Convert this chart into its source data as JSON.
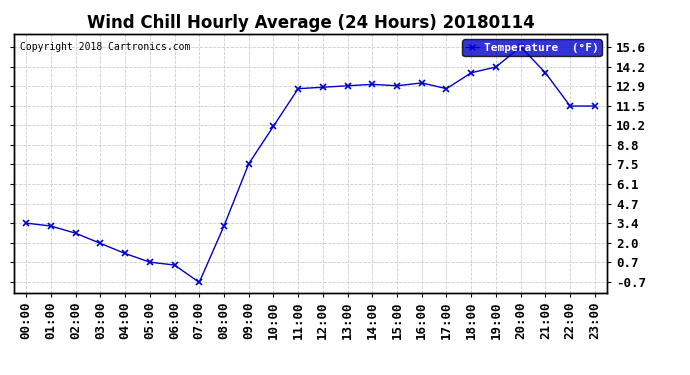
{
  "title": "Wind Chill Hourly Average (24 Hours) 20180114",
  "copyright": "Copyright 2018 Cartronics.com",
  "legend_label": "Temperature  (°F)",
  "hours": [
    "00:00",
    "01:00",
    "02:00",
    "03:00",
    "04:00",
    "05:00",
    "06:00",
    "07:00",
    "08:00",
    "09:00",
    "10:00",
    "11:00",
    "12:00",
    "13:00",
    "14:00",
    "15:00",
    "16:00",
    "17:00",
    "18:00",
    "19:00",
    "20:00",
    "21:00",
    "22:00",
    "23:00"
  ],
  "values": [
    3.4,
    3.2,
    2.7,
    2.0,
    1.3,
    0.7,
    0.5,
    -0.7,
    3.2,
    7.5,
    10.1,
    12.7,
    12.8,
    12.9,
    13.0,
    12.9,
    13.1,
    12.7,
    13.8,
    14.2,
    15.6,
    13.8,
    11.5,
    11.5
  ],
  "line_color": "#0000cc",
  "marker_color": "#0000cc",
  "background_color": "#ffffff",
  "grid_color": "#cccccc",
  "yticks": [
    -0.7,
    0.7,
    2.0,
    3.4,
    4.7,
    6.1,
    7.5,
    8.8,
    10.2,
    11.5,
    12.9,
    14.2,
    15.6
  ],
  "ylim": [
    -1.4,
    16.5
  ],
  "legend_bg": "#0000cc",
  "legend_text_color": "#ffffff",
  "title_fontsize": 12,
  "tick_fontsize": 9,
  "copyright_fontsize": 7
}
